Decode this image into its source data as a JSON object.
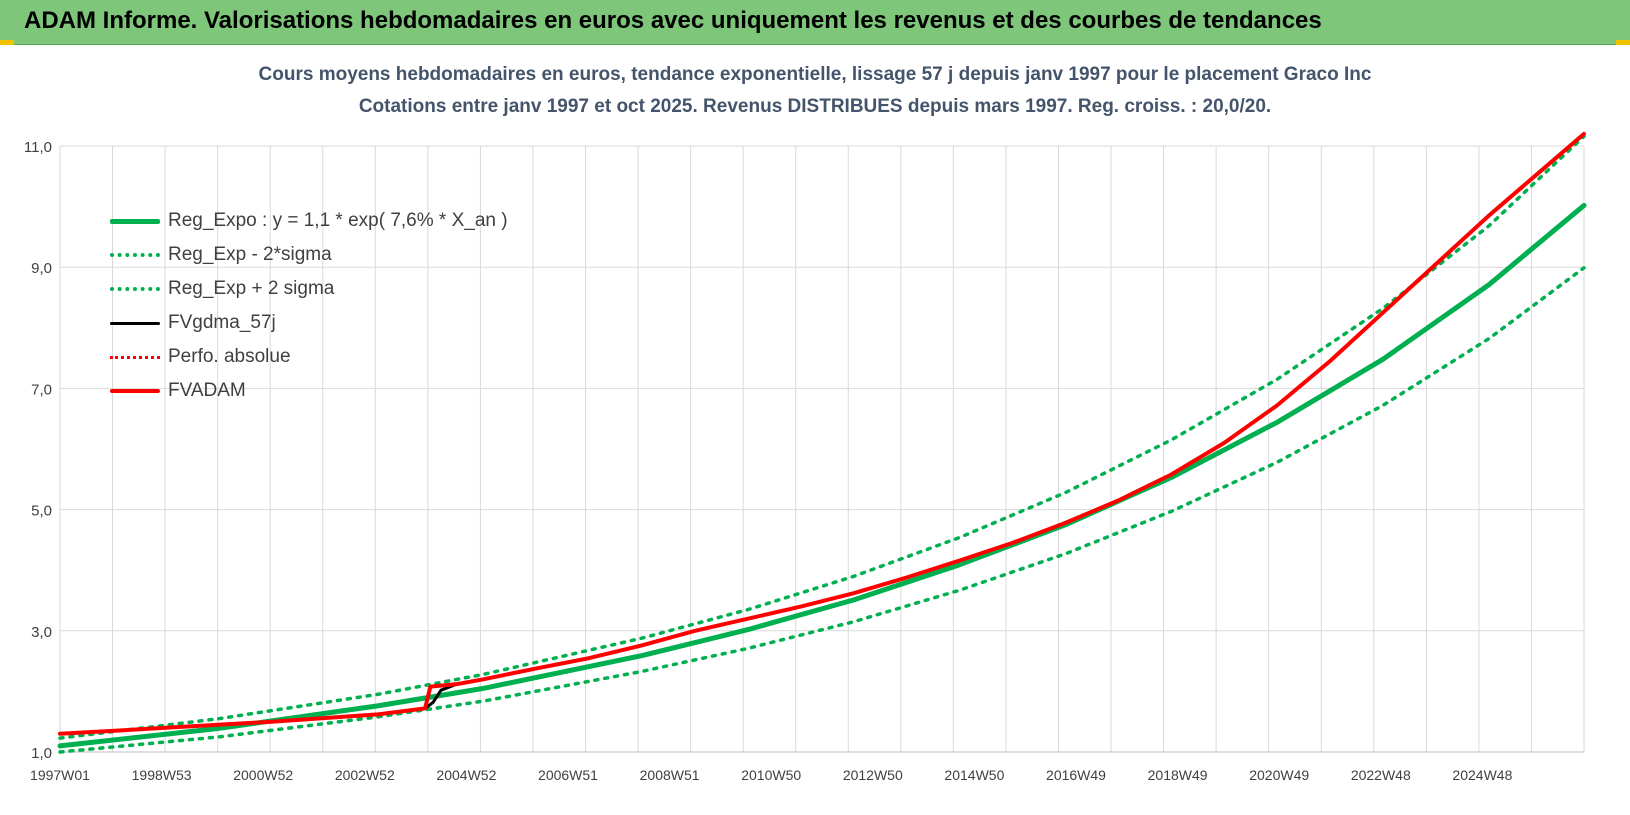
{
  "banner": {
    "title": "ADAM Informe. Valorisations hebdomadaires en euros avec uniquement les revenus et des courbes de tendances"
  },
  "chart_data": {
    "type": "line",
    "title_line1": "Cours moyens hebdomadaires en euros, tendance exponentielle, lissage 57 j depuis janv 1997 pour le placement Graco Inc",
    "title_line2": "Cotations entre janv 1997 et oct 2025. Revenus DISTRIBUES depuis mars 1997. Reg. croiss. : 20,0/20.",
    "x_range": [
      1997.0,
      2025.8
    ],
    "ylim": [
      1.0,
      11.0
    ],
    "yticks": [
      "1,0",
      "3,0",
      "5,0",
      "7,0",
      "9,0",
      "11,0"
    ],
    "ytick_values": [
      1.0,
      3.0,
      5.0,
      7.0,
      9.0,
      11.0
    ],
    "xticks": [
      "1997W01",
      "1998W53",
      "2000W52",
      "2002W52",
      "2004W52",
      "2006W51",
      "2008W51",
      "2010W50",
      "2012W50",
      "2014W50",
      "2016W49",
      "2018W49",
      "2020W49",
      "2022W48",
      "2024W48"
    ],
    "grid": true,
    "legend_position": "top-left",
    "colors": {
      "reg_expo": "#00b050",
      "red": "#ff0000",
      "black": "#000000",
      "grid": "#d9d9d9",
      "axis_text": "#404040"
    },
    "series": [
      {
        "name": "Reg_Expo : y = 1,1 * exp( 7,6% * X_an )",
        "style": "solid-green-thick",
        "x": [
          1997.0,
          2000.0,
          2003.0,
          2005.0,
          2008.0,
          2010.0,
          2012.0,
          2014.0,
          2016.0,
          2018.0,
          2020.0,
          2022.0,
          2024.0,
          2025.8
        ],
        "y": [
          1.1,
          1.39,
          1.76,
          2.05,
          2.59,
          3.02,
          3.51,
          4.09,
          4.75,
          5.53,
          6.44,
          7.48,
          8.71,
          10.02
        ]
      },
      {
        "name": "Reg_Exp - 2*sigma",
        "style": "dotted-green",
        "x": [
          1997.0,
          2000.0,
          2003.0,
          2005.0,
          2008.0,
          2010.0,
          2012.0,
          2014.0,
          2016.0,
          2018.0,
          2020.0,
          2022.0,
          2024.0,
          2025.8
        ],
        "y": [
          1.0,
          1.25,
          1.58,
          1.84,
          2.33,
          2.71,
          3.15,
          3.67,
          4.27,
          4.97,
          5.78,
          6.72,
          7.82,
          8.99
        ]
      },
      {
        "name": "Reg_Exp + 2 sigma",
        "style": "dotted-green",
        "x": [
          1997.0,
          2000.0,
          2003.0,
          2005.0,
          2008.0,
          2010.0,
          2012.0,
          2014.0,
          2016.0,
          2018.0,
          2020.0,
          2022.0,
          2024.0,
          2025.8
        ],
        "y": [
          1.23,
          1.55,
          1.95,
          2.28,
          2.88,
          3.35,
          3.9,
          4.54,
          5.28,
          6.15,
          7.15,
          8.32,
          9.68,
          11.16
        ]
      },
      {
        "name": "FVgdma_57j",
        "style": "solid-black",
        "x": [
          1997.0,
          1999.0,
          2001.0,
          2003.0,
          2003.9,
          2004.05,
          2004.2,
          2004.5,
          2005.0,
          2006.0,
          2007.0,
          2008.0,
          2009.0,
          2010.0,
          2011.0,
          2012.0,
          2013.0,
          2014.0,
          2015.0,
          2016.0,
          2017.0,
          2018.0,
          2019.0,
          2020.0,
          2021.0,
          2022.0,
          2023.0,
          2024.0,
          2025.0,
          2025.8
        ],
        "y": [
          1.3,
          1.4,
          1.5,
          1.62,
          1.72,
          1.82,
          2.02,
          2.12,
          2.2,
          2.38,
          2.55,
          2.76,
          3.0,
          3.2,
          3.4,
          3.62,
          3.88,
          4.16,
          4.45,
          4.78,
          5.15,
          5.58,
          6.1,
          6.72,
          7.45,
          8.25,
          9.05,
          9.85,
          10.6,
          11.2
        ]
      },
      {
        "name": "Perfo. absolue",
        "style": "dotted-red",
        "x": [
          1997.0,
          1999.0,
          2001.0,
          2003.0,
          2003.9,
          2004.0,
          2004.5,
          2005.0,
          2006.0,
          2007.0,
          2008.0,
          2009.0,
          2010.0,
          2011.0,
          2012.0,
          2013.0,
          2014.0,
          2015.0,
          2016.0,
          2017.0,
          2018.0,
          2019.0,
          2020.0,
          2021.0,
          2022.0,
          2023.0,
          2024.0,
          2025.0,
          2025.8
        ],
        "y": [
          1.3,
          1.4,
          1.5,
          1.62,
          1.72,
          2.08,
          2.12,
          2.2,
          2.38,
          2.55,
          2.76,
          3.0,
          3.2,
          3.4,
          3.62,
          3.88,
          4.16,
          4.45,
          4.78,
          5.15,
          5.58,
          6.1,
          6.72,
          7.45,
          8.25,
          9.05,
          9.85,
          10.6,
          11.2
        ]
      },
      {
        "name": "FVADAM",
        "style": "solid-red-thick",
        "x": [
          1997.0,
          1999.0,
          2001.0,
          2003.0,
          2003.9,
          2004.0,
          2004.5,
          2005.0,
          2006.0,
          2007.0,
          2008.0,
          2009.0,
          2010.0,
          2011.0,
          2012.0,
          2013.0,
          2014.0,
          2015.0,
          2016.0,
          2017.0,
          2018.0,
          2019.0,
          2020.0,
          2021.0,
          2022.0,
          2023.0,
          2024.0,
          2025.0,
          2025.8
        ],
        "y": [
          1.3,
          1.4,
          1.5,
          1.62,
          1.72,
          2.08,
          2.12,
          2.2,
          2.38,
          2.55,
          2.76,
          3.0,
          3.2,
          3.4,
          3.62,
          3.88,
          4.16,
          4.45,
          4.78,
          5.15,
          5.58,
          6.1,
          6.72,
          7.45,
          8.25,
          9.05,
          9.85,
          10.6,
          11.2
        ]
      }
    ]
  }
}
